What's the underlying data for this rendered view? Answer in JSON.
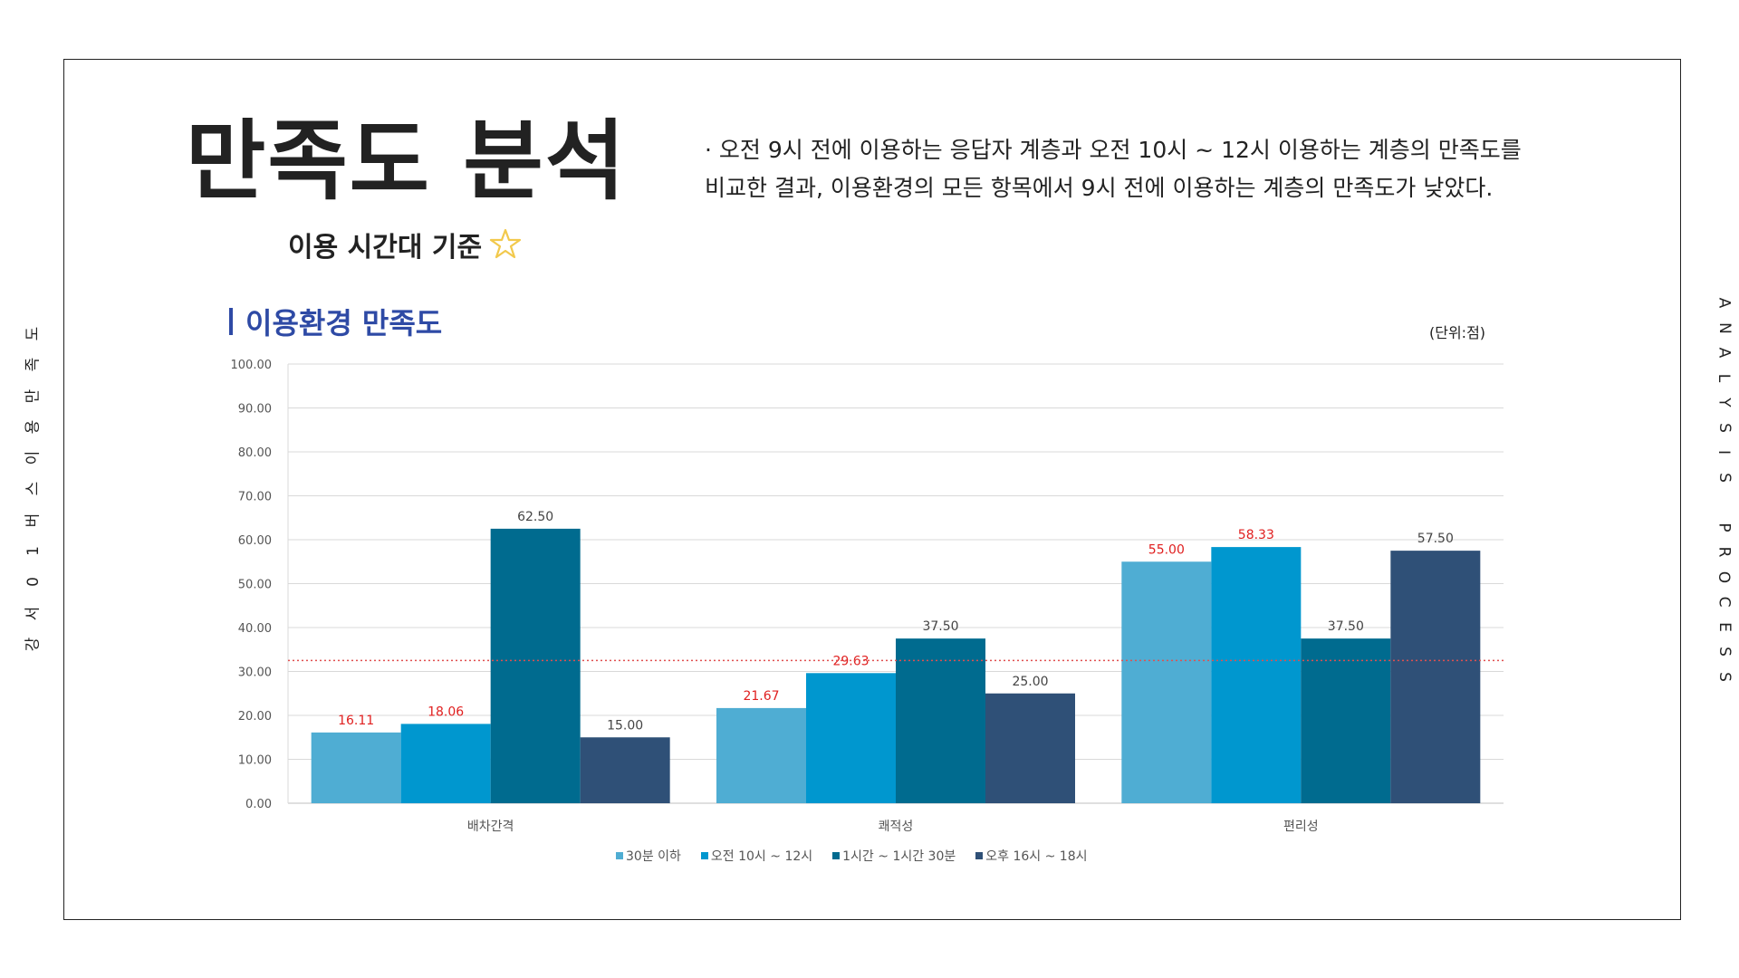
{
  "side_left_chars": [
    "강",
    "서",
    "0",
    "1",
    "버",
    "스",
    "이",
    "용",
    "만",
    "족",
    "도"
  ],
  "side_right_chars": [
    "A",
    "N",
    "A",
    "L",
    "Y",
    "S",
    "I",
    "S",
    "",
    "P",
    "R",
    "O",
    "C",
    "E",
    "S",
    "S"
  ],
  "header": {
    "title": "만족도 분석",
    "subtitle": "이용 시간대 기준",
    "star_icon_color": "#f2c94c",
    "description_lines": [
      "· 오전 9시 전에 이용하는 응답자 계층과 오전 10시 ~ 12시 이용하는 계층의 만족도를",
      "비교한 결과, 이용환경의 모든 항목에서 9시 전에 이용하는 계층의 만족도가 낮았다."
    ]
  },
  "section": {
    "title": "이용환경 만족도",
    "unit": "(단위:점)"
  },
  "colors": {
    "accent_title": "#2e4aa5",
    "highlight_label": "#e02020",
    "normal_label": "#444444",
    "reference_line": "#e05050"
  },
  "chart_data": {
    "type": "bar",
    "categories": [
      "배차간격",
      "쾌적성",
      "편리성"
    ],
    "series": [
      {
        "name": "30분 이하",
        "color": "#4fadd3",
        "values": [
          16.11,
          21.67,
          55.0
        ],
        "labels": [
          "16.11",
          "21.67",
          "55.00"
        ],
        "highlight": [
          true,
          true,
          true
        ]
      },
      {
        "name": "오전 10시 ~ 12시",
        "color": "#0097cf",
        "values": [
          18.06,
          29.63,
          58.33
        ],
        "labels": [
          "18.06",
          "29.63",
          "58.33"
        ],
        "highlight": [
          true,
          true,
          true
        ]
      },
      {
        "name": "1시간 ~ 1시간 30분",
        "color": "#006b8f",
        "values": [
          62.5,
          37.5,
          37.5
        ],
        "labels": [
          "62.50",
          "37.50",
          "37.50"
        ],
        "highlight": [
          false,
          false,
          false
        ]
      },
      {
        "name": "오후 16시 ~ 18시",
        "color": "#2f5077",
        "values": [
          15.0,
          25.0,
          57.5
        ],
        "labels": [
          "15.00",
          "25.00",
          "57.50"
        ],
        "highlight": [
          false,
          false,
          false
        ]
      }
    ],
    "ylim": [
      0,
      100
    ],
    "yticks": [
      "0.00",
      "10.00",
      "20.00",
      "30.00",
      "40.00",
      "50.00",
      "60.00",
      "70.00",
      "80.00",
      "90.00",
      "100.00"
    ],
    "reference_line_value": 32.5,
    "grid": true,
    "legend_position": "bottom"
  }
}
